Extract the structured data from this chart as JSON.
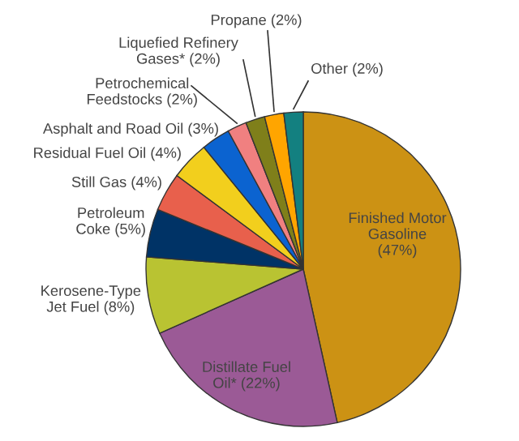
{
  "chart_data": {
    "type": "pie",
    "categories": [
      "Finished Motor Gasoline",
      "Distillate Fuel Oil*",
      "Kerosene-Type Jet Fuel",
      "Petroleum Coke",
      "Still Gas",
      "Residual Fuel Oil",
      "Asphalt and Road Oil",
      "Petrochemical Feedstocks",
      "Liquefied Refinery Gases*",
      "Propane",
      "Other"
    ],
    "values": [
      47,
      22,
      8,
      5,
      4,
      4,
      3,
      2,
      2,
      2,
      2
    ],
    "value_labels": [
      "(47%)",
      "(22%)",
      "(8%)",
      "(5%)",
      "(4%)",
      "(4%)",
      "(3%)",
      "(2%)",
      "(2%)",
      "(2%)",
      "(2%)"
    ],
    "colors": [
      "#cc9214",
      "#9b5a96",
      "#b9c332",
      "#003366",
      "#e8604c",
      "#f2cf1d",
      "#0b63d0",
      "#f08080",
      "#7f7f1a",
      "#ffa500",
      "#138080"
    ]
  }
}
